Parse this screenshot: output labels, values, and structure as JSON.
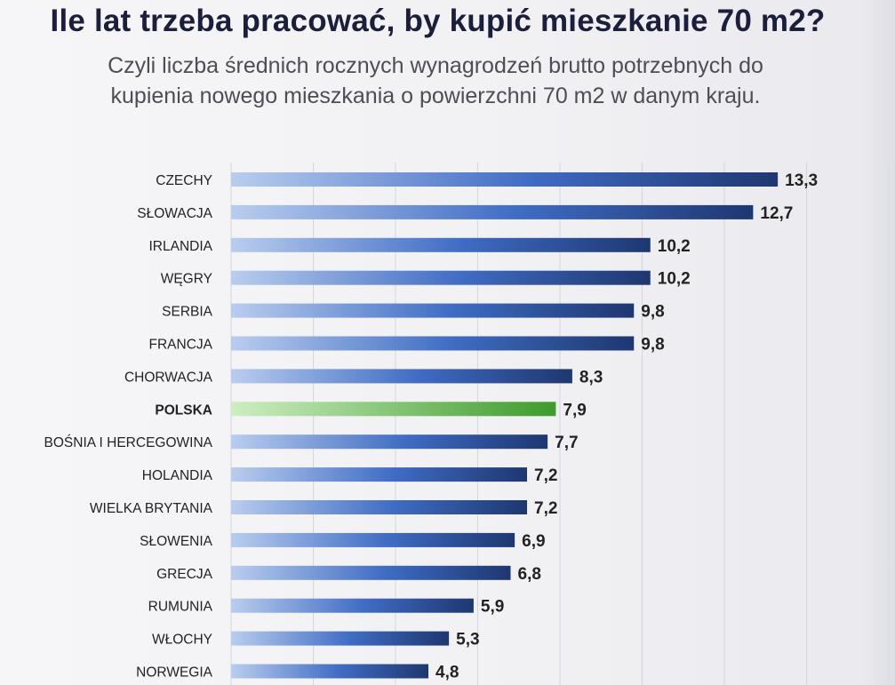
{
  "header": {
    "title": "Ile lat trzeba pracować, by kupić mieszkanie 70 m2?",
    "subtitle": "Czyli liczba średnich rocznych wynagrodzeń brutto potrzebnych do kupienia nowego mieszkania o powierzchni 70 m2 w danym kraju."
  },
  "colors": {
    "bar_start": "#b9cdee",
    "bar_mid": "#3f6cc4",
    "bar_end": "#1e3770",
    "highlight_start": "#cdeec2",
    "highlight_end": "#3e9b2c",
    "label": "#222222",
    "grid": "#d4d6dc"
  },
  "chart_data": {
    "type": "bar",
    "orientation": "horizontal",
    "title": "Ile lat trzeba pracować, by kupić mieszkanie 70 m2?",
    "subtitle": "Czyli liczba średnich rocznych wynagrodzeń brutto potrzebnych do kupienia nowego mieszkania o powierzchni 70 m2 w danym kraju.",
    "categories": [
      "CZECHY",
      "SŁOWACJA",
      "IRLANDIA",
      "WĘGRY",
      "SERBIA",
      "FRANCJA",
      "CHORWACJA",
      "POLSKA",
      "BOŚNIA I HERCEGOWINA",
      "HOLANDIA",
      "WIELKA BRYTANIA",
      "SŁOWENIA",
      "GRECJA",
      "RUMUNIA",
      "WŁOCHY",
      "NORWEGIA"
    ],
    "values": [
      13.3,
      12.7,
      10.2,
      10.2,
      9.8,
      9.8,
      8.3,
      7.9,
      7.7,
      7.2,
      7.2,
      6.9,
      6.8,
      5.9,
      5.3,
      4.8
    ],
    "value_labels": [
      "13,3",
      "12,7",
      "10,2",
      "10,2",
      "9,8",
      "9,8",
      "8,3",
      "7,9",
      "7,7",
      "7,2",
      "7,2",
      "6,9",
      "6,8",
      "5,9",
      "5,3",
      "4,8"
    ],
    "highlight": "POLSKA",
    "xlim": [
      0,
      16
    ],
    "grid": true,
    "xlabel": "",
    "ylabel": ""
  }
}
